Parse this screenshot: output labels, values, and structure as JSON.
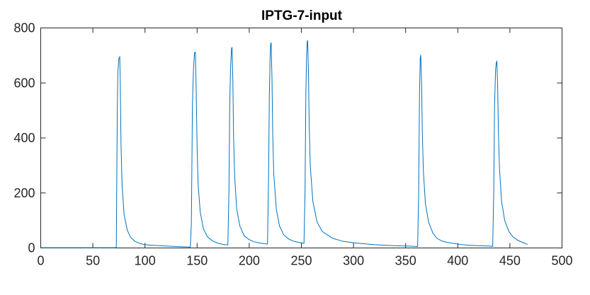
{
  "chart_data": {
    "type": "line",
    "title": "IPTG-7-input",
    "xlabel": "",
    "ylabel": "",
    "xlim": [
      0,
      500
    ],
    "ylim": [
      0,
      800
    ],
    "xticks": [
      0,
      50,
      100,
      150,
      200,
      250,
      300,
      350,
      400,
      450,
      500
    ],
    "yticks": [
      0,
      200,
      400,
      600,
      800
    ],
    "grid": false,
    "legend": "none",
    "series": [
      {
        "color": "#0072BD",
        "points": [
          [
            0,
            1
          ],
          [
            70,
            1
          ],
          [
            71.5,
            1
          ],
          [
            72.5,
            2
          ],
          [
            73,
            280
          ],
          [
            73.5,
            520
          ],
          [
            74,
            640
          ],
          [
            75,
            690
          ],
          [
            75.8,
            695
          ],
          [
            76.3,
            600
          ],
          [
            77,
            380
          ],
          [
            78,
            230
          ],
          [
            80,
            120
          ],
          [
            83,
            65
          ],
          [
            86,
            40
          ],
          [
            90,
            25
          ],
          [
            95,
            16
          ],
          [
            100,
            12
          ],
          [
            110,
            9
          ],
          [
            120,
            7
          ],
          [
            130,
            5
          ],
          [
            140,
            4
          ],
          [
            143.5,
            3
          ],
          [
            144.5,
            90
          ],
          [
            145,
            300
          ],
          [
            145.5,
            520
          ],
          [
            146.5,
            650
          ],
          [
            147.5,
            710
          ],
          [
            148.3,
            712
          ],
          [
            149,
            600
          ],
          [
            150,
            360
          ],
          [
            151,
            230
          ],
          [
            153,
            130
          ],
          [
            156,
            70
          ],
          [
            160,
            40
          ],
          [
            165,
            25
          ],
          [
            170,
            17
          ],
          [
            175,
            13
          ],
          [
            179.5,
            11
          ],
          [
            180.5,
            200
          ],
          [
            181.3,
            520
          ],
          [
            182,
            650
          ],
          [
            183,
            725
          ],
          [
            183.5,
            730
          ],
          [
            184.3,
            600
          ],
          [
            185,
            400
          ],
          [
            186,
            260
          ],
          [
            188,
            140
          ],
          [
            191,
            80
          ],
          [
            195,
            45
          ],
          [
            200,
            30
          ],
          [
            205,
            22
          ],
          [
            210,
            18
          ],
          [
            215,
            15
          ],
          [
            217.5,
            14
          ],
          [
            218.5,
            250
          ],
          [
            219.3,
            560
          ],
          [
            220,
            690
          ],
          [
            220.5,
            742
          ],
          [
            221,
            745
          ],
          [
            221.8,
            620
          ],
          [
            222.5,
            420
          ],
          [
            223.5,
            270
          ],
          [
            226,
            140
          ],
          [
            229,
            80
          ],
          [
            233,
            48
          ],
          [
            238,
            32
          ],
          [
            243,
            24
          ],
          [
            248,
            20
          ],
          [
            252.5,
            17
          ],
          [
            253.5,
            200
          ],
          [
            254.3,
            560
          ],
          [
            255,
            700
          ],
          [
            255.6,
            750
          ],
          [
            256,
            755
          ],
          [
            256.8,
            640
          ],
          [
            257.5,
            450
          ],
          [
            258.5,
            300
          ],
          [
            261,
            170
          ],
          [
            265,
            95
          ],
          [
            270,
            60
          ],
          [
            280,
            35
          ],
          [
            290,
            24
          ],
          [
            300,
            19
          ],
          [
            310,
            15
          ],
          [
            320,
            12
          ],
          [
            330,
            10
          ],
          [
            340,
            8
          ],
          [
            350,
            7
          ],
          [
            358,
            6
          ],
          [
            361.5,
            5
          ],
          [
            362.5,
            200
          ],
          [
            363.3,
            560
          ],
          [
            364,
            690
          ],
          [
            364.5,
            702
          ],
          [
            365.3,
            600
          ],
          [
            366,
            420
          ],
          [
            367,
            280
          ],
          [
            369,
            160
          ],
          [
            372,
            95
          ],
          [
            376,
            55
          ],
          [
            380,
            35
          ],
          [
            385,
            25
          ],
          [
            390,
            20
          ],
          [
            400,
            14
          ],
          [
            410,
            10
          ],
          [
            420,
            8
          ],
          [
            430,
            7
          ],
          [
            433.5,
            6
          ],
          [
            434.5,
            200
          ],
          [
            435.3,
            520
          ],
          [
            436.3,
            650
          ],
          [
            437,
            675
          ],
          [
            437.5,
            678
          ],
          [
            438.3,
            580
          ],
          [
            439,
            420
          ],
          [
            440,
            290
          ],
          [
            442,
            170
          ],
          [
            445,
            100
          ],
          [
            449,
            60
          ],
          [
            453,
            40
          ],
          [
            458,
            27
          ],
          [
            463,
            19
          ],
          [
            467,
            13
          ]
        ]
      }
    ]
  }
}
